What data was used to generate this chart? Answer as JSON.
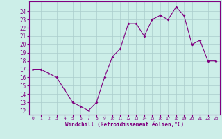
{
  "x": [
    0,
    1,
    2,
    3,
    4,
    5,
    6,
    7,
    8,
    9,
    10,
    11,
    12,
    13,
    14,
    15,
    16,
    17,
    18,
    19,
    20,
    21,
    22,
    23
  ],
  "y": [
    17,
    17,
    16.5,
    16,
    14.5,
    13,
    12.5,
    12,
    13,
    16,
    18.5,
    19.5,
    22.5,
    22.5,
    21,
    23,
    23.5,
    23,
    24.5,
    23.5,
    20,
    20.5,
    18,
    18
  ],
  "line_color": "#800080",
  "marker": "D",
  "marker_size": 2.0,
  "marker_lw": 0,
  "line_width": 0.8,
  "background_color": "#cceee8",
  "grid_color": "#aacccc",
  "xlabel": "Windchill (Refroidissement éolien,°C)",
  "xlabel_color": "#800080",
  "tick_color": "#800080",
  "spine_color": "#800080",
  "ylim": [
    11.5,
    25.2
  ],
  "xlim": [
    -0.5,
    23.5
  ],
  "yticks": [
    12,
    13,
    14,
    15,
    16,
    17,
    18,
    19,
    20,
    21,
    22,
    23,
    24
  ],
  "ytick_labels": [
    "12",
    "13",
    "14",
    "15",
    "16",
    "17",
    "18",
    "19",
    "20",
    "21",
    "22",
    "23",
    "24"
  ],
  "xticks": [
    0,
    1,
    2,
    3,
    4,
    5,
    6,
    7,
    8,
    9,
    10,
    11,
    12,
    13,
    14,
    15,
    16,
    17,
    18,
    19,
    20,
    21,
    22,
    23
  ],
  "xtick_labels": [
    "0",
    "1",
    "2",
    "3",
    "4",
    "5",
    "6",
    "7",
    "8",
    "9",
    "10",
    "11",
    "12",
    "13",
    "14",
    "15",
    "16",
    "17",
    "18",
    "19",
    "20",
    "21",
    "22",
    "23"
  ],
  "xlabel_fontsize": 5.5,
  "ytick_fontsize": 5.5,
  "xtick_fontsize": 4.5
}
